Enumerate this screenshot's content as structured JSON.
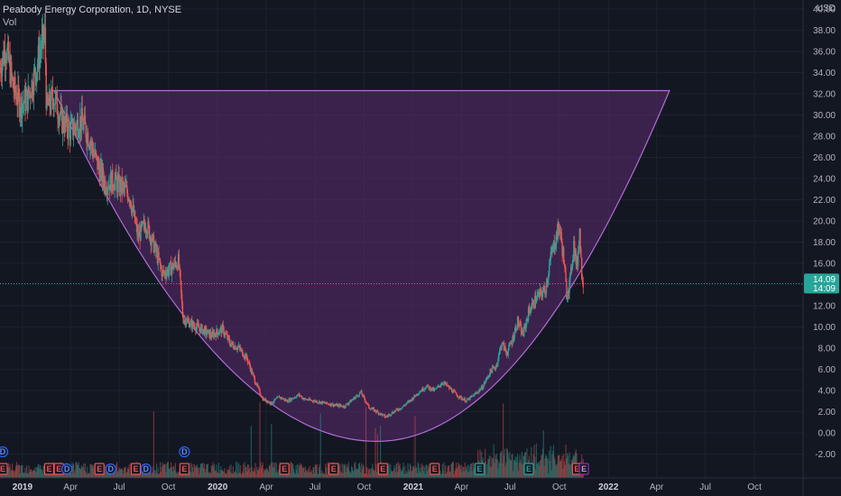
{
  "header": {
    "symbol_title": "Peabody Energy Corporation, 1D, NYSE",
    "volume_label": "Vol"
  },
  "colors": {
    "background": "#131722",
    "up": "#26a69a",
    "down": "#ef5350",
    "pattern_fill": "#5b2c6f",
    "pattern_stroke": "#b36bd6",
    "price_line": "#26a69a"
  },
  "price_axis": {
    "currency": "USD",
    "current_price_top": "14.09",
    "current_price_bottom": "14:09"
  },
  "chart_data": {
    "type": "candlestick",
    "y_axis": {
      "range": [
        -3,
        41
      ],
      "ticks": [
        -2,
        0,
        2,
        4,
        6,
        8,
        10,
        12,
        14,
        16,
        18,
        20,
        22,
        24,
        26,
        28,
        30,
        32,
        34,
        36,
        38,
        40
      ],
      "tick_labels": [
        "-2.00",
        "0.00",
        "2.00",
        "4.00",
        "6.00",
        "8.00",
        "10.00",
        "12.00",
        "14.00",
        "16.00",
        "18.00",
        "20.00",
        "22.00",
        "24.00",
        "26.00",
        "28.00",
        "30.00",
        "32.00",
        "34.00",
        "36.00",
        "38.00",
        "40.00"
      ]
    },
    "x_axis": {
      "range": [
        "2018-11-20",
        "2022-12-31"
      ],
      "ticks": [
        "2019-01-01",
        "2019-04-01",
        "2019-07-01",
        "2019-10-01",
        "2020-01-01",
        "2020-04-01",
        "2020-07-01",
        "2020-10-01",
        "2021-01-01",
        "2021-04-01",
        "2021-07-01",
        "2021-10-01",
        "2022-01-01",
        "2022-04-01",
        "2022-07-01",
        "2022-10-01"
      ],
      "tick_labels": [
        "2019",
        "Apr",
        "Jul",
        "Oct",
        "2020",
        "Apr",
        "Jul",
        "Oct",
        "2021",
        "Apr",
        "Jul",
        "Oct",
        "2022",
        "Apr",
        "Jul",
        "Oct"
      ]
    },
    "price_path": [
      [
        "2018-11-20",
        34.5
      ],
      [
        "2018-12-01",
        36.5
      ],
      [
        "2018-12-15",
        32.5
      ],
      [
        "2018-12-28",
        31.0
      ],
      [
        "2019-01-10",
        31.5
      ],
      [
        "2019-01-25",
        34.0
      ],
      [
        "2019-02-05",
        36.5
      ],
      [
        "2019-02-12",
        37.5
      ],
      [
        "2019-02-15",
        30.5
      ],
      [
        "2019-03-01",
        31.8
      ],
      [
        "2019-03-15",
        29.5
      ],
      [
        "2019-04-01",
        28.5
      ],
      [
        "2019-04-20",
        29.5
      ],
      [
        "2019-05-05",
        28.0
      ],
      [
        "2019-05-20",
        25.5
      ],
      [
        "2019-06-05",
        23.5
      ],
      [
        "2019-06-20",
        23.8
      ],
      [
        "2019-07-05",
        23.2
      ],
      [
        "2019-07-20",
        22.5
      ],
      [
        "2019-08-05",
        18.5
      ],
      [
        "2019-08-20",
        19.8
      ],
      [
        "2019-09-05",
        17.5
      ],
      [
        "2019-09-20",
        15.0
      ],
      [
        "2019-10-05",
        15.5
      ],
      [
        "2019-10-20",
        16.2
      ],
      [
        "2019-10-28",
        10.8
      ],
      [
        "2019-11-15",
        10.2
      ],
      [
        "2019-12-01",
        9.8
      ],
      [
        "2019-12-20",
        9.2
      ],
      [
        "2020-01-10",
        9.8
      ],
      [
        "2020-01-25",
        8.4
      ],
      [
        "2020-02-10",
        8.0
      ],
      [
        "2020-02-25",
        7.0
      ],
      [
        "2020-03-10",
        5.0
      ],
      [
        "2020-03-25",
        3.2
      ],
      [
        "2020-04-10",
        2.8
      ],
      [
        "2020-04-25",
        3.4
      ],
      [
        "2020-05-10",
        3.0
      ],
      [
        "2020-06-01",
        3.6
      ],
      [
        "2020-06-10",
        3.2
      ],
      [
        "2020-07-01",
        3.0
      ],
      [
        "2020-07-20",
        2.8
      ],
      [
        "2020-08-10",
        2.6
      ],
      [
        "2020-08-25",
        2.5
      ],
      [
        "2020-09-15",
        3.4
      ],
      [
        "2020-09-25",
        3.8
      ],
      [
        "2020-10-10",
        2.4
      ],
      [
        "2020-10-25",
        2.0
      ],
      [
        "2020-11-10",
        1.5
      ],
      [
        "2020-11-25",
        2.0
      ],
      [
        "2020-12-10",
        2.4
      ],
      [
        "2020-12-25",
        3.0
      ],
      [
        "2021-01-10",
        3.8
      ],
      [
        "2021-01-25",
        4.4
      ],
      [
        "2021-02-10",
        4.0
      ],
      [
        "2021-02-25",
        4.8
      ],
      [
        "2021-03-10",
        4.2
      ],
      [
        "2021-03-25",
        3.5
      ],
      [
        "2021-04-10",
        3.0
      ],
      [
        "2021-04-25",
        3.6
      ],
      [
        "2021-05-10",
        4.3
      ],
      [
        "2021-05-25",
        5.8
      ],
      [
        "2021-06-05",
        6.3
      ],
      [
        "2021-06-15",
        8.5
      ],
      [
        "2021-06-25",
        7.5
      ],
      [
        "2021-07-05",
        8.8
      ],
      [
        "2021-07-15",
        10.5
      ],
      [
        "2021-07-25",
        9.2
      ],
      [
        "2021-08-05",
        11.5
      ],
      [
        "2021-08-20",
        12.8
      ],
      [
        "2021-09-05",
        13.5
      ],
      [
        "2021-09-15",
        16.5
      ],
      [
        "2021-09-25",
        18.5
      ],
      [
        "2021-10-01",
        19.5
      ],
      [
        "2021-10-08",
        17.0
      ],
      [
        "2021-10-15",
        13.0
      ],
      [
        "2021-10-22",
        14.5
      ],
      [
        "2021-10-28",
        18.0
      ],
      [
        "2021-11-03",
        15.5
      ],
      [
        "2021-11-08",
        19.2
      ],
      [
        "2021-11-12",
        15.0
      ],
      [
        "2021-11-16",
        14.1
      ]
    ],
    "cup_curve": {
      "vertex": [
        "2020-10-25",
        -0.8
      ],
      "left_point": [
        "2019-03-01",
        32.3
      ],
      "right_point": [
        "2022-04-25",
        32.3
      ],
      "top_price": 32.3
    },
    "current_price": 14.09,
    "event_markers": [
      {
        "date": "2018-11-25",
        "label": "D",
        "type": "D",
        "row": "upper"
      },
      {
        "date": "2018-11-25",
        "label": "E",
        "type": "E",
        "row": "lower"
      },
      {
        "date": "2019-02-20",
        "label": "E",
        "type": "E",
        "row": "lower"
      },
      {
        "date": "2019-03-10",
        "label": "E",
        "type": "E",
        "row": "lower"
      },
      {
        "date": "2019-03-25",
        "label": "D",
        "type": "D",
        "row": "lower"
      },
      {
        "date": "2019-05-25",
        "label": "E",
        "type": "E",
        "row": "lower"
      },
      {
        "date": "2019-06-15",
        "label": "D",
        "type": "D",
        "row": "lower"
      },
      {
        "date": "2019-08-01",
        "label": "E",
        "type": "E",
        "row": "lower"
      },
      {
        "date": "2019-08-20",
        "label": "D",
        "type": "D",
        "row": "lower"
      },
      {
        "date": "2019-10-31",
        "label": "D",
        "type": "D",
        "row": "upper"
      },
      {
        "date": "2019-10-31",
        "label": "E",
        "type": "E",
        "row": "lower"
      },
      {
        "date": "2020-05-05",
        "label": "E",
        "type": "E",
        "row": "lower"
      },
      {
        "date": "2020-08-05",
        "label": "E",
        "type": "E",
        "row": "lower"
      },
      {
        "date": "2020-11-05",
        "label": "E",
        "type": "E",
        "row": "lower"
      },
      {
        "date": "2021-02-10",
        "label": "E",
        "type": "E",
        "row": "lower"
      },
      {
        "date": "2021-05-05",
        "label": "E",
        "type": "E",
        "row": "lower"
      },
      {
        "date": "2021-08-05",
        "label": "E",
        "type": "E",
        "row": "lower"
      },
      {
        "date": "2021-11-03",
        "label": "E",
        "type": "E",
        "row": "lower"
      },
      {
        "date": "2021-11-16",
        "label": "E",
        "type": "future",
        "row": "lower"
      }
    ]
  }
}
